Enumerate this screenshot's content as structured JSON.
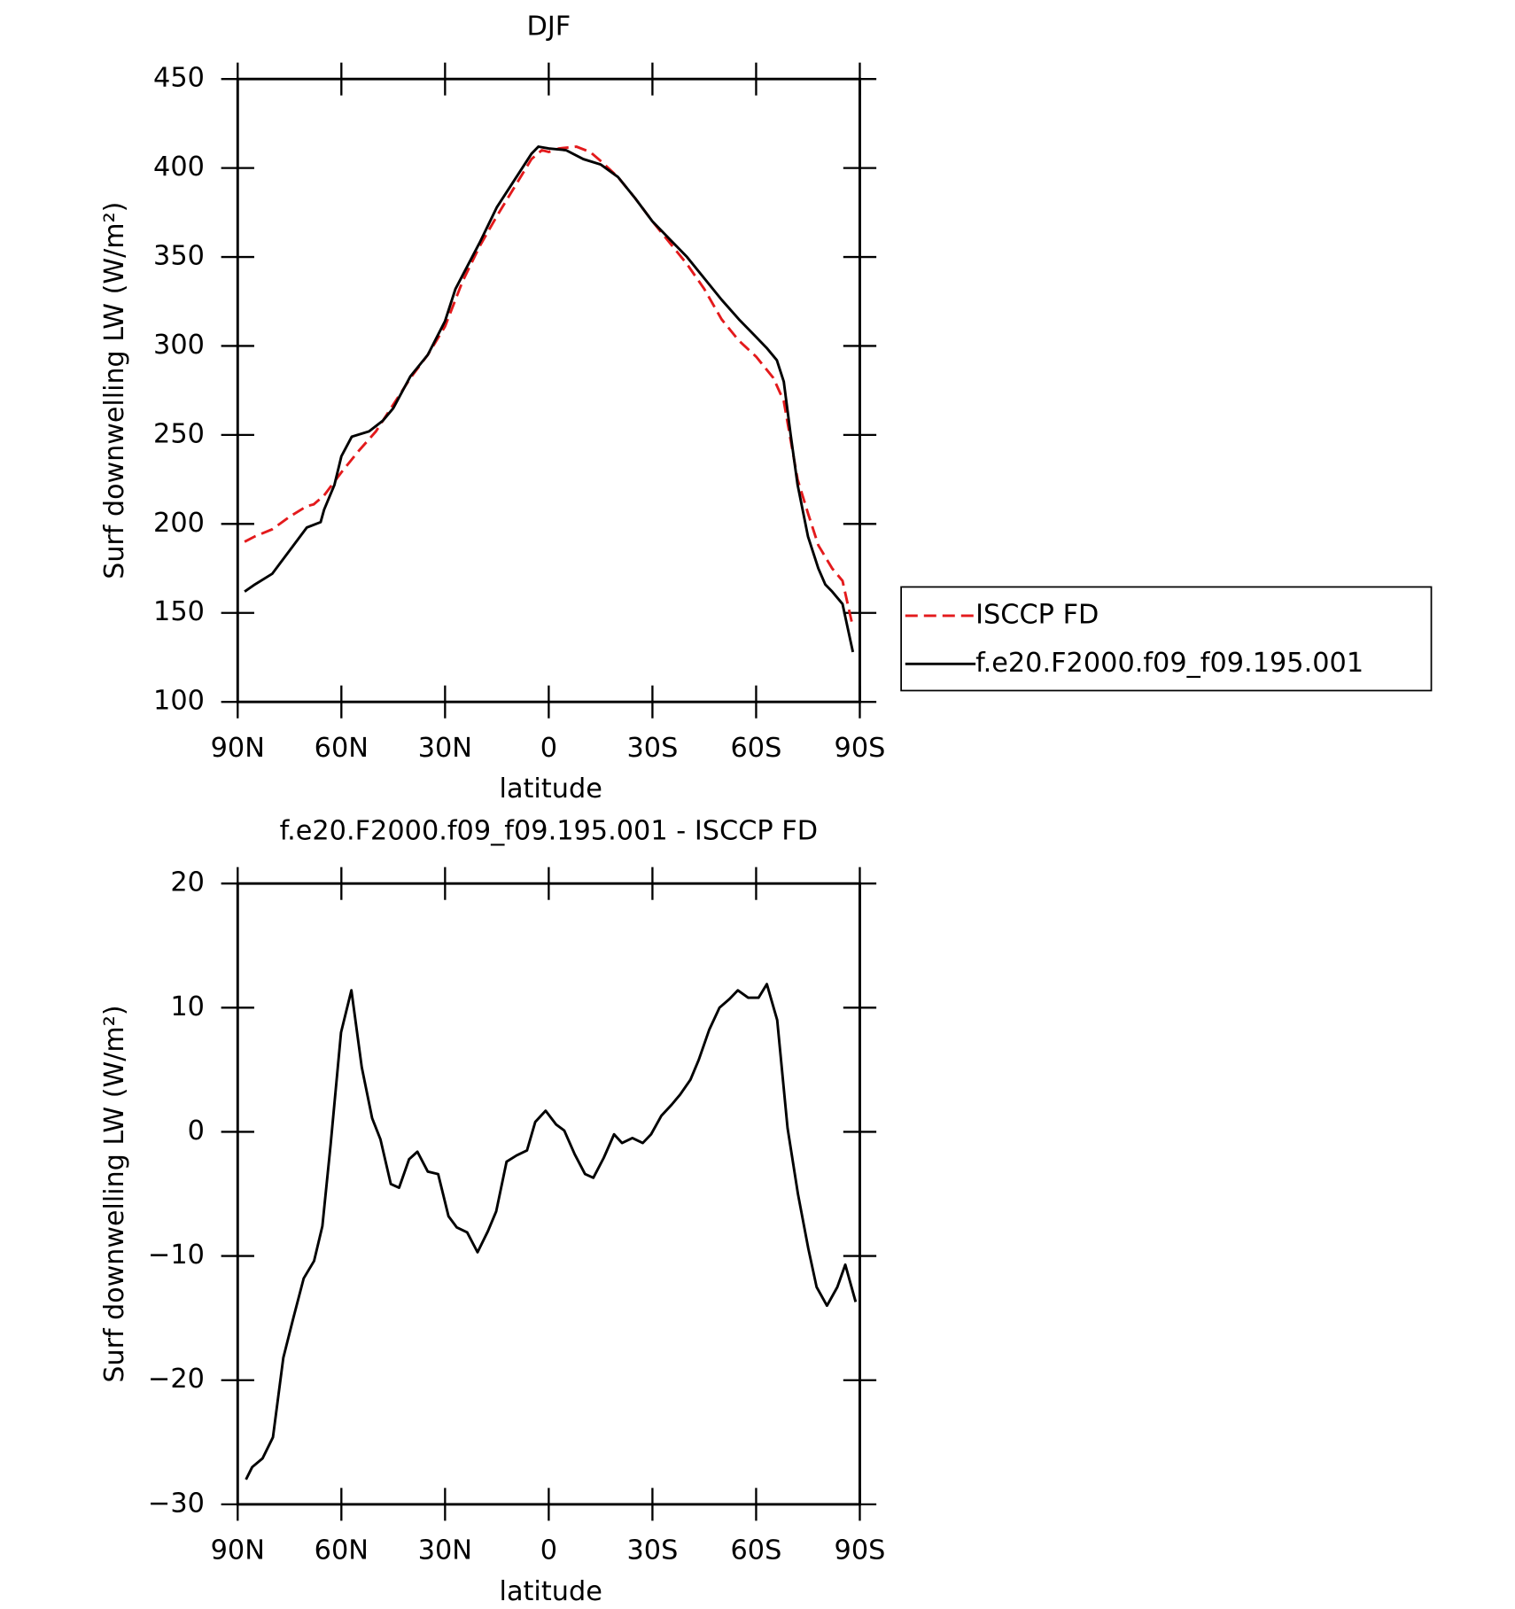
{
  "chart_data": [
    {
      "type": "line",
      "title": "DJF",
      "x_label": "latitude",
      "y_label": "Surf downwelling LW (W/m²)",
      "xlim": [
        90,
        -90
      ],
      "xticks": [
        {
          "value": 90,
          "label": "90N"
        },
        {
          "value": 60,
          "label": "60N"
        },
        {
          "value": 30,
          "label": "30N"
        },
        0,
        {
          "value": -30,
          "label": "30S"
        },
        {
          "value": -60,
          "label": "60S"
        },
        {
          "value": -90,
          "label": "90S"
        }
      ],
      "ylim": [
        100,
        450
      ],
      "yticks": [
        100,
        150,
        200,
        250,
        300,
        350,
        400,
        450
      ],
      "legend": "outside-right",
      "series": [
        {
          "name": "ISCCP FD",
          "color": "#e31a1c",
          "dash": true,
          "x": [
            88,
            85,
            80,
            75,
            70,
            68,
            65,
            60,
            55,
            50,
            45,
            40,
            35,
            30,
            25,
            20,
            15,
            10,
            5,
            2,
            0,
            -3,
            -8,
            -12,
            -15,
            -20,
            -25,
            -30,
            -35,
            -40,
            -45,
            -50,
            -55,
            -60,
            -65,
            -68,
            -70,
            -72,
            -75,
            -78,
            -82,
            -85,
            -88
          ],
          "values": [
            190,
            193,
            197,
            204,
            210,
            211,
            216,
            229,
            241,
            252,
            267,
            282,
            295,
            311,
            336,
            356,
            373,
            389,
            405,
            410,
            409,
            411,
            412,
            409,
            404,
            395,
            383,
            370,
            358,
            346,
            332,
            315,
            303,
            294,
            282,
            269,
            247,
            225,
            206,
            188,
            175,
            168,
            142
          ]
        },
        {
          "name": "f.e20.F2000.f09_f09.195.001",
          "color": "#000000",
          "dash": false,
          "x": [
            88,
            85,
            80,
            75,
            70,
            66,
            65,
            62,
            60,
            57,
            52,
            48,
            45,
            40,
            35,
            30,
            27,
            20,
            15,
            10,
            5,
            3,
            0,
            -5,
            -10,
            -15,
            -20,
            -25,
            -30,
            -35,
            -40,
            -45,
            -50,
            -55,
            -60,
            -63,
            -66,
            -68,
            -70,
            -72,
            -75,
            -78,
            -80,
            -82,
            -85,
            -88
          ],
          "values": [
            162,
            166,
            172,
            185,
            198,
            201,
            208,
            222,
            238,
            249,
            252,
            258,
            265,
            283,
            295,
            314,
            332,
            358,
            378,
            393,
            408,
            412,
            411,
            410,
            405,
            402,
            395,
            383,
            370,
            360,
            350,
            338,
            326,
            315,
            305,
            299,
            292,
            280,
            250,
            222,
            193,
            175,
            166,
            162,
            155,
            128
          ]
        }
      ]
    },
    {
      "type": "line",
      "title": "f.e20.F2000.f09_f09.195.001 - ISCCP FD",
      "x_label": "latitude",
      "y_label": "Surf downwelling LW (W/m²)",
      "xlim": [
        90,
        -90
      ],
      "xticks": [
        {
          "value": 90,
          "label": "90N"
        },
        {
          "value": 60,
          "label": "60N"
        },
        {
          "value": 30,
          "label": "30N"
        },
        0,
        {
          "value": -30,
          "label": "30S"
        },
        {
          "value": -60,
          "label": "60S"
        },
        {
          "value": -90,
          "label": "90S"
        }
      ],
      "ylim": [
        -30,
        20
      ],
      "yticks": [
        {
          "value": -30,
          "label": "−30"
        },
        {
          "value": -20,
          "label": "−20"
        },
        {
          "value": -10,
          "label": "−10"
        },
        0,
        10,
        20
      ],
      "series": [
        {
          "color": "#000000",
          "dash": false,
          "x": [
            87.6,
            85.8,
            82.8,
            79.8,
            76.8,
            73.9,
            70.9,
            67.9,
            65.5,
            63.1,
            60.1,
            57.1,
            54.1,
            51.1,
            48.7,
            45.7,
            43.3,
            40.4,
            38,
            35,
            32,
            29,
            26.6,
            23.6,
            20.6,
            17.6,
            15.2,
            12.2,
            9.3,
            6.3,
            3.9,
            0.9,
            -2.1,
            -4.5,
            -7.5,
            -10.5,
            -12.9,
            -15.9,
            -18.9,
            -21.2,
            -24.2,
            -27.2,
            -29.6,
            -32.6,
            -35.6,
            -38,
            -41,
            -43.4,
            -46.4,
            -49.4,
            -52.3,
            -54.7,
            -57.7,
            -60.7,
            -63.1,
            -66.1,
            -69.1,
            -72.1,
            -75.1,
            -77.5,
            -80.5,
            -83.5,
            -85.8,
            -88.8
          ],
          "values": [
            -28,
            -27,
            -26.3,
            -24.6,
            -18.2,
            -15,
            -11.8,
            -10.4,
            -7.6,
            -1,
            8,
            11.4,
            5.2,
            1.1,
            -0.6,
            -4.2,
            -4.5,
            -2.2,
            -1.6,
            -3.2,
            -3.4,
            -6.8,
            -7.7,
            -8.1,
            -9.7,
            -8,
            -6.4,
            -2.4,
            -1.9,
            -1.5,
            0.8,
            1.7,
            0.6,
            0.1,
            -1.8,
            -3.4,
            -3.7,
            -2.1,
            -0.2,
            -0.9,
            -0.5,
            -0.9,
            -0.2,
            1.3,
            2.2,
            3,
            4.2,
            5.8,
            8.2,
            10,
            10.7,
            11.4,
            10.8,
            10.8,
            11.9,
            9,
            0.3,
            -5,
            -9.4,
            -12.5,
            -14,
            -12.5,
            -10.7,
            -13.7
          ]
        }
      ]
    }
  ]
}
